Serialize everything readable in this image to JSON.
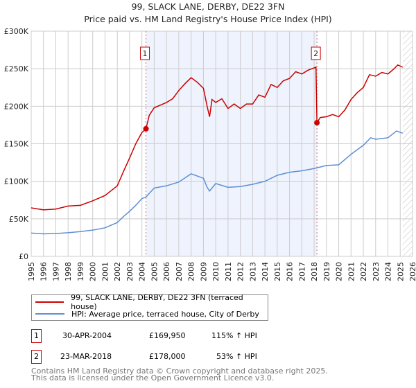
{
  "chart_data": {
    "type": "line",
    "title": "99, SLACK LANE, DERBY, DE22 3FN",
    "subtitle": "Price paid vs. HM Land Registry's House Price Index (HPI)",
    "xlim": [
      1995,
      2026
    ],
    "ylim": [
      0,
      300000
    ],
    "yticks": [
      {
        "v": 0,
        "label": "£0"
      },
      {
        "v": 50000,
        "label": "£50K"
      },
      {
        "v": 100000,
        "label": "£100K"
      },
      {
        "v": 150000,
        "label": "£150K"
      },
      {
        "v": 200000,
        "label": "£200K"
      },
      {
        "v": 250000,
        "label": "£250K"
      },
      {
        "v": 300000,
        "label": "£300K"
      }
    ],
    "xticks": [
      "1995",
      "1996",
      "1997",
      "1998",
      "1999",
      "2000",
      "2001",
      "2002",
      "2003",
      "2004",
      "2005",
      "2006",
      "2007",
      "2008",
      "2009",
      "2010",
      "2011",
      "2012",
      "2013",
      "2014",
      "2015",
      "2016",
      "2017",
      "2018",
      "2019",
      "2020",
      "2021",
      "2022",
      "2023",
      "2024",
      "2025",
      "2026"
    ],
    "grid": true,
    "shaded_period": [
      2004.33,
      2018.23
    ],
    "forecast_hatch_from": 2025.2,
    "series": [
      {
        "name": "99, SLACK LANE, DERBY, DE22 3FN (terraced house)",
        "color": "#cc0000",
        "x": [
          1995,
          1996,
          1997,
          1998,
          1999,
          2000,
          2001,
          2002,
          2002.5,
          2003,
          2003.5,
          2004,
          2004.33,
          2004.6,
          2005,
          2006,
          2006.5,
          2007,
          2007.5,
          2008,
          2008.5,
          2009,
          2009.3,
          2009.5,
          2009.7,
          2010,
          2010.5,
          2011,
          2011.5,
          2012,
          2012.5,
          2013,
          2013.5,
          2014,
          2014.5,
          2015,
          2015.5,
          2016,
          2016.5,
          2017,
          2017.5,
          2018.15,
          2018.23,
          2018.5,
          2019,
          2019.5,
          2020,
          2020.5,
          2021,
          2021.5,
          2022,
          2022.5,
          2023,
          2023.5,
          2024,
          2024.5,
          2024.8,
          2025.2
        ],
        "y": [
          64600,
          62000,
          63000,
          67000,
          68000,
          74000,
          81000,
          94000,
          113000,
          131000,
          150000,
          165000,
          169950,
          188000,
          198000,
          205000,
          210000,
          221000,
          230000,
          238000,
          232000,
          224000,
          200000,
          186000,
          209000,
          205000,
          210000,
          197000,
          203000,
          197000,
          203000,
          203000,
          215000,
          212000,
          229000,
          225000,
          234000,
          237000,
          246000,
          243000,
          248000,
          252000,
          178000,
          185000,
          186000,
          189000,
          186000,
          195000,
          209000,
          218000,
          225000,
          242000,
          240000,
          245000,
          243000,
          250000,
          255000,
          252000
        ]
      },
      {
        "name": "HPI: Average price, terraced house, City of Derby",
        "color": "#5b8fd4",
        "x": [
          1995,
          1996,
          1997,
          1998,
          1999,
          2000,
          2001,
          2002,
          2002.5,
          2003,
          2003.5,
          2004,
          2004.33,
          2005,
          2006,
          2007,
          2008,
          2008.5,
          2009,
          2009.3,
          2009.5,
          2010,
          2011,
          2012,
          2013,
          2014,
          2015,
          2016,
          2017,
          2018,
          2019,
          2020,
          2021,
          2022,
          2022.6,
          2023,
          2024,
          2024.7,
          2025.2
        ],
        "y": [
          31000,
          30000,
          30500,
          31500,
          33000,
          35000,
          38000,
          45000,
          53000,
          60000,
          68000,
          77000,
          79000,
          91000,
          94000,
          99000,
          110000,
          107000,
          104000,
          92000,
          87000,
          97000,
          92000,
          93000,
          96000,
          100000,
          108000,
          112000,
          114000,
          117000,
          121000,
          122000,
          136000,
          148000,
          158000,
          156000,
          158000,
          167000,
          164000
        ]
      }
    ],
    "sales": [
      {
        "label": "1",
        "x": 2004.33,
        "y": 169950,
        "date": "30-APR-2004",
        "price": "£169,950",
        "hpi": "115% ↑ HPI"
      },
      {
        "label": "2",
        "x": 2018.23,
        "y": 178000,
        "date": "23-MAR-2018",
        "price": "£178,000",
        "hpi": "53% ↑ HPI"
      }
    ]
  },
  "footer": {
    "line1": "Contains HM Land Registry data © Crown copyright and database right 2025.",
    "line2": "This data is licensed under the Open Government Licence v3.0."
  }
}
